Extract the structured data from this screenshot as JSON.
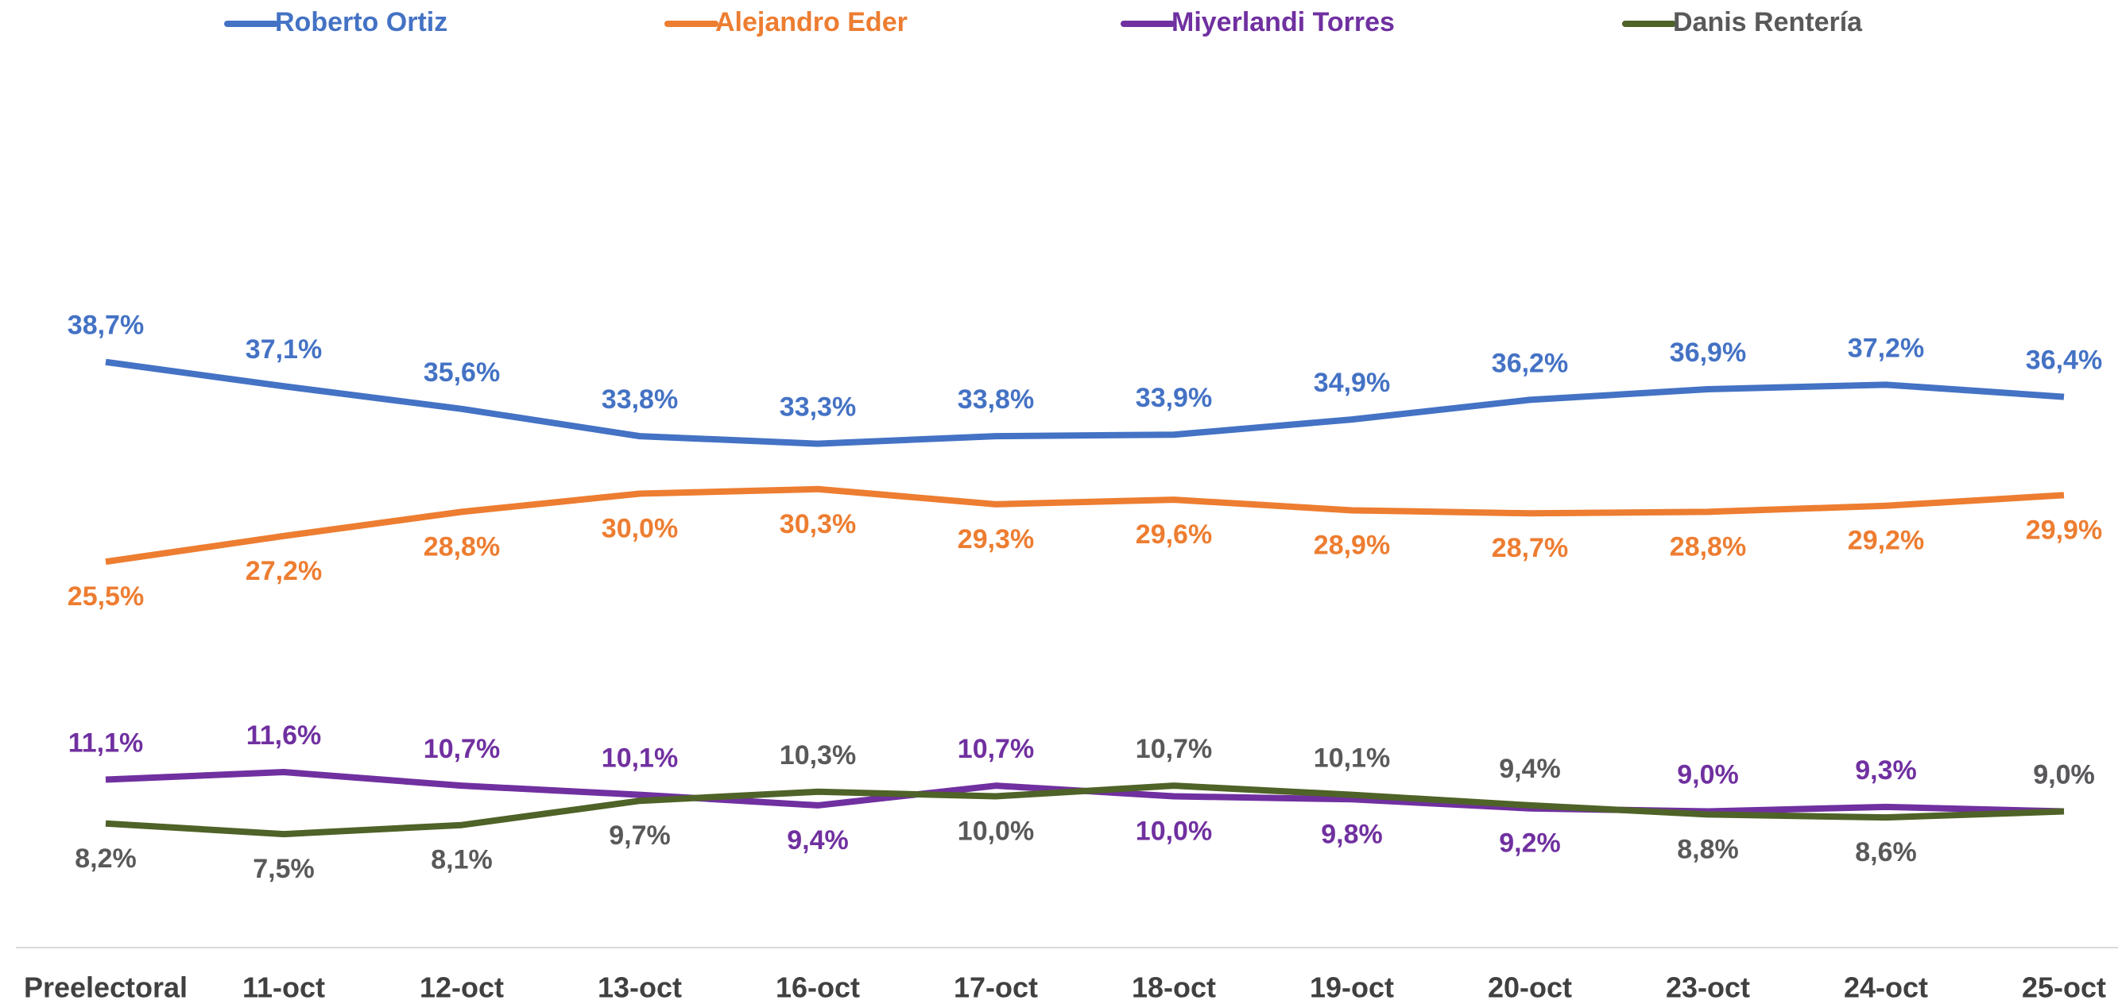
{
  "chart_data": {
    "type": "line",
    "categories": [
      "Preelectoral",
      "11-oct",
      "12-oct",
      "13-oct",
      "16-oct",
      "17-oct",
      "18-oct",
      "19-oct",
      "20-oct",
      "23-oct",
      "24-oct",
      "25-oct"
    ],
    "ylim": [
      0,
      60
    ],
    "series": [
      {
        "name": "Roberto Ortiz",
        "color": "#4472c4",
        "label_color": "#4472c4",
        "values": [
          38.7,
          37.1,
          35.6,
          33.8,
          33.3,
          33.8,
          33.9,
          34.9,
          36.2,
          36.9,
          37.2,
          36.4
        ],
        "value_labels": [
          "38,7%",
          "37,1%",
          "35,6%",
          "33,8%",
          "33,3%",
          "33,8%",
          "33,9%",
          "34,9%",
          "36,2%",
          "36,9%",
          "37,2%",
          "36,4%"
        ]
      },
      {
        "name": "Alejandro Eder",
        "color": "#ed7d31",
        "label_color": "#ed7d31",
        "values": [
          25.5,
          27.2,
          28.8,
          30.0,
          30.3,
          29.3,
          29.6,
          28.9,
          28.7,
          28.8,
          29.2,
          29.9
        ],
        "value_labels": [
          "25,5%",
          "27,2%",
          "28,8%",
          "30,0%",
          "30,3%",
          "29,3%",
          "29,6%",
          "28,9%",
          "28,7%",
          "28,8%",
          "29,2%",
          "29,9%"
        ]
      },
      {
        "name": "Miyerlandi Torres",
        "color": "#7030a0",
        "label_color": "#7030a0",
        "values": [
          11.1,
          11.6,
          10.7,
          10.1,
          9.4,
          10.7,
          10.0,
          9.8,
          9.2,
          9.0,
          9.3,
          9.0
        ],
        "value_labels": [
          "11,1%",
          "11,6%",
          "10,7%",
          "10,1%",
          "9,4%",
          "10,7%",
          "10,0%",
          "9,8%",
          "9,2%",
          "9,0%",
          "9,3%",
          "9,0%"
        ]
      },
      {
        "name": "Danis Rentería",
        "color": "#4f6228",
        "label_color": "#595959",
        "values": [
          8.2,
          7.5,
          8.1,
          9.7,
          10.3,
          10.0,
          10.7,
          10.1,
          9.4,
          8.8,
          8.6,
          9.0
        ],
        "value_labels": [
          "8,2%",
          "7,5%",
          "8,1%",
          "9,7%",
          "10,3%",
          "10,0%",
          "10,7%",
          "10,1%",
          "9,4%",
          "8,8%",
          "8,6%",
          "9,0%"
        ]
      }
    ]
  }
}
